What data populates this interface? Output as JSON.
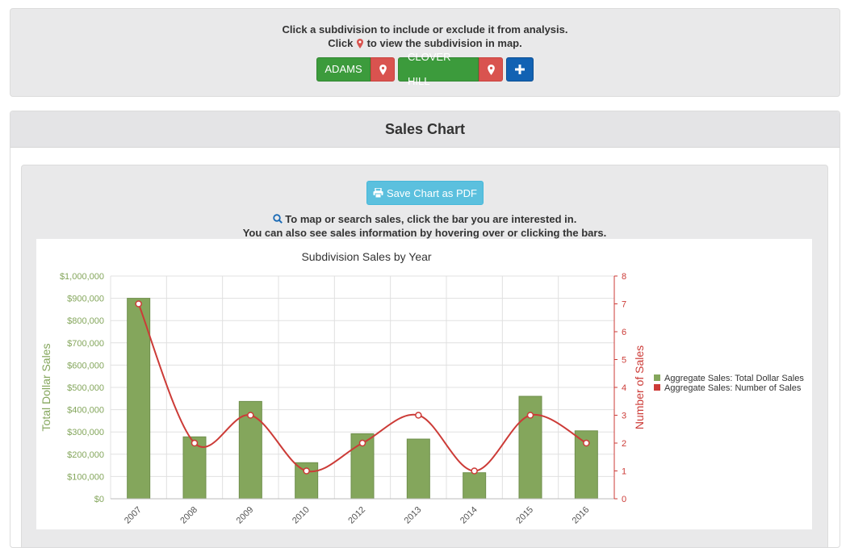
{
  "header": {
    "line1": "Click a subdivision to include or exclude it from analysis.",
    "line2_pre": "Click",
    "line2_post": "to view the subdivision in map.",
    "subdivisions": [
      {
        "label": "ADAMS"
      },
      {
        "label": "CLOVER HILL"
      }
    ],
    "add_icon": "plus-icon",
    "pin_icon": "map-marker-icon"
  },
  "sales_chart": {
    "title": "Sales Chart",
    "save_pdf_label": "Save Chart as PDF",
    "hint_line1": "To map or search sales, click the bar you are interested in.",
    "hint_line2": "You can also see sales information by hovering over or clicking the bars."
  },
  "colors": {
    "bar": "#84a65c",
    "bar_border": "#6f8f4c",
    "line": "#cc3b37",
    "left_axis": "#84a65c",
    "right_axis": "#cc3b37",
    "pdf_button": "#5bc0de",
    "green_button": "#3c9b3c",
    "red_button": "#d9534f",
    "blue_button": "#1262b3"
  },
  "chart_data": {
    "type": "bar",
    "title": "Subdivision Sales by Year",
    "categories": [
      "2007",
      "2008",
      "2009",
      "2010",
      "2012",
      "2013",
      "2014",
      "2015",
      "2016"
    ],
    "series": [
      {
        "name": "Aggregate Sales: Total Dollar Sales",
        "type": "bar",
        "axis": "left",
        "values": [
          900000,
          278000,
          437000,
          162000,
          292000,
          268000,
          117000,
          460000,
          305000
        ]
      },
      {
        "name": "Aggregate Sales: Number of Sales",
        "type": "line",
        "axis": "right",
        "values": [
          7,
          2,
          3,
          1,
          2,
          3,
          1,
          3,
          2
        ]
      }
    ],
    "ylabel": "Total Dollar Sales",
    "y2label": "Number of Sales",
    "ylim": [
      0,
      1000000
    ],
    "y2lim": [
      0,
      8
    ],
    "yticks": [
      "$0",
      "$100,000",
      "$200,000",
      "$300,000",
      "$400,000",
      "$500,000",
      "$600,000",
      "$700,000",
      "$800,000",
      "$900,000",
      "$1,000,000"
    ],
    "y2ticks": [
      "0",
      "1",
      "2",
      "3",
      "4",
      "5",
      "6",
      "7",
      "8"
    ],
    "grid": true,
    "legend": "right"
  }
}
